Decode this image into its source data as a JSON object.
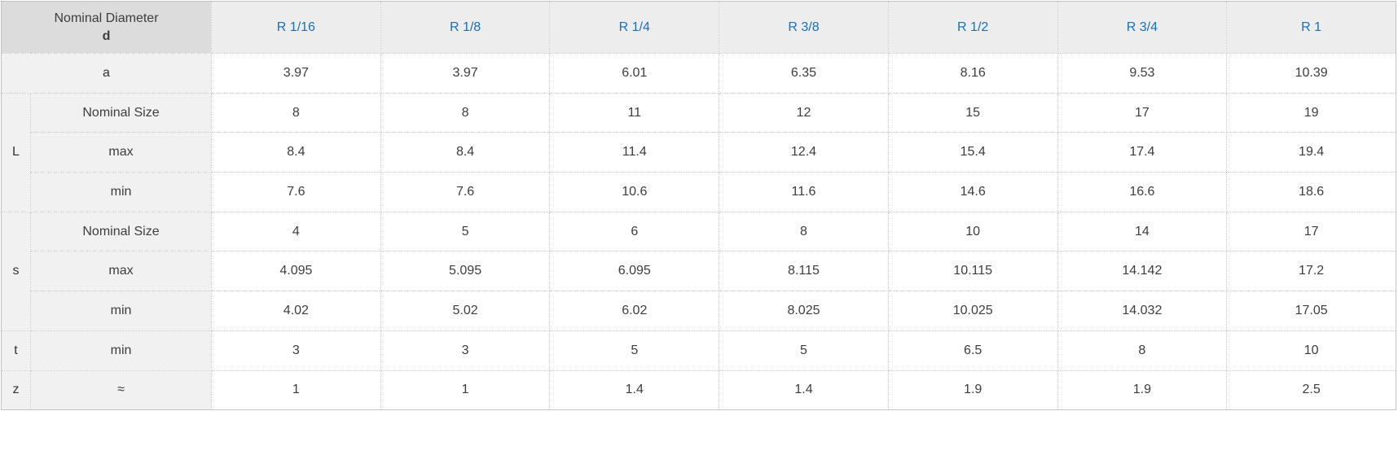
{
  "colors": {
    "accent_blue": "#1a6fb5",
    "corner_header_bg": "#dcdcdc",
    "column_header_bg": "#ededed",
    "row_label_bg": "#f1f1f1",
    "data_cell_bg": "#ffffff",
    "border": "#c9c9c9",
    "text": "#3d3d3d"
  },
  "table": {
    "corner": {
      "line1": "Nominal Diameter",
      "line2": "d"
    },
    "columns": [
      "R 1/16",
      "R 1/8",
      "R 1/4",
      "R 3/8",
      "R 1/2",
      "R 3/4",
      "R 1"
    ],
    "row_groups": [
      {
        "label": "a",
        "rows": [
          {
            "sub": null,
            "values": [
              "3.97",
              "3.97",
              "6.01",
              "6.35",
              "8.16",
              "9.53",
              "10.39"
            ]
          }
        ]
      },
      {
        "label": "L",
        "rows": [
          {
            "sub": "Nominal Size",
            "values": [
              "8",
              "8",
              "11",
              "12",
              "15",
              "17",
              "19"
            ]
          },
          {
            "sub": "max",
            "values": [
              "8.4",
              "8.4",
              "11.4",
              "12.4",
              "15.4",
              "17.4",
              "19.4"
            ]
          },
          {
            "sub": "min",
            "values": [
              "7.6",
              "7.6",
              "10.6",
              "11.6",
              "14.6",
              "16.6",
              "18.6"
            ]
          }
        ]
      },
      {
        "label": "s",
        "rows": [
          {
            "sub": "Nominal Size",
            "values": [
              "4",
              "5",
              "6",
              "8",
              "10",
              "14",
              "17"
            ]
          },
          {
            "sub": "max",
            "values": [
              "4.095",
              "5.095",
              "6.095",
              "8.115",
              "10.115",
              "14.142",
              "17.2"
            ]
          },
          {
            "sub": "min",
            "values": [
              "4.02",
              "5.02",
              "6.02",
              "8.025",
              "10.025",
              "14.032",
              "17.05"
            ]
          }
        ]
      },
      {
        "label": "t",
        "rows": [
          {
            "sub": "min",
            "values": [
              "3",
              "3",
              "5",
              "5",
              "6.5",
              "8",
              "10"
            ]
          }
        ]
      },
      {
        "label": "z",
        "rows": [
          {
            "sub": "≈",
            "values": [
              "1",
              "1",
              "1.4",
              "1.4",
              "1.9",
              "1.9",
              "2.5"
            ]
          }
        ]
      }
    ]
  },
  "chart_data": {
    "type": "table",
    "title": "Nominal Diameter d",
    "columns": [
      "R 1/16",
      "R 1/8",
      "R 1/4",
      "R 3/8",
      "R 1/2",
      "R 3/4",
      "R 1"
    ],
    "rows": [
      {
        "name": "a",
        "values": [
          3.97,
          3.97,
          6.01,
          6.35,
          8.16,
          9.53,
          10.39
        ]
      },
      {
        "name": "L Nominal Size",
        "values": [
          8,
          8,
          11,
          12,
          15,
          17,
          19
        ]
      },
      {
        "name": "L max",
        "values": [
          8.4,
          8.4,
          11.4,
          12.4,
          15.4,
          17.4,
          19.4
        ]
      },
      {
        "name": "L min",
        "values": [
          7.6,
          7.6,
          10.6,
          11.6,
          14.6,
          16.6,
          18.6
        ]
      },
      {
        "name": "s Nominal Size",
        "values": [
          4,
          5,
          6,
          8,
          10,
          14,
          17
        ]
      },
      {
        "name": "s max",
        "values": [
          4.095,
          5.095,
          6.095,
          8.115,
          10.115,
          14.142,
          17.2
        ]
      },
      {
        "name": "s min",
        "values": [
          4.02,
          5.02,
          6.02,
          8.025,
          10.025,
          14.032,
          17.05
        ]
      },
      {
        "name": "t min",
        "values": [
          3,
          3,
          5,
          5,
          6.5,
          8,
          10
        ]
      },
      {
        "name": "z ≈",
        "values": [
          1,
          1,
          1.4,
          1.4,
          1.9,
          1.9,
          2.5
        ]
      }
    ]
  }
}
